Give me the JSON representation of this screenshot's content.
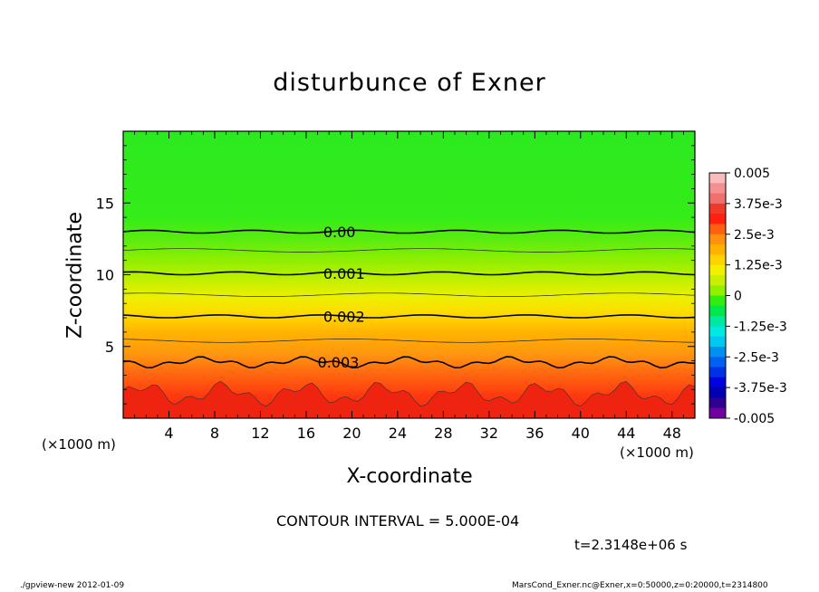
{
  "chart_data": {
    "type": "contour",
    "title": "disturbunce of Exner",
    "xlabel": "X-coordinate",
    "ylabel": "Z-coordinate",
    "x_unit": "(×1000 m)",
    "y_unit": "(×1000 m)",
    "xlim": [
      0,
      50
    ],
    "ylim": [
      0,
      20
    ],
    "x_ticks": [
      4,
      8,
      12,
      16,
      20,
      24,
      28,
      32,
      36,
      40,
      44,
      48
    ],
    "y_ticks": [
      5,
      10,
      15
    ],
    "contour_interval_text": "CONTOUR INTERVAL = 5.000E-04",
    "time_text": "t=2.3148e+06 s",
    "contour_lines": [
      {
        "label": "0.00",
        "z": 13.0
      },
      {
        "label": "0.001",
        "z": 10.1
      },
      {
        "label": "0.002",
        "z": 7.1
      },
      {
        "label": "0.003",
        "z": 3.9
      }
    ],
    "colorbar": {
      "min": -0.005,
      "max": 0.005,
      "tick_labels": [
        "0.005",
        "3.75e-3",
        "2.5e-3",
        "1.25e-3",
        "0",
        "-1.25e-3",
        "-2.5e-3",
        "-3.75e-3",
        "-0.005"
      ],
      "colors": [
        "#f8bcbc",
        "#f59090",
        "#f07070",
        "#ee3a28",
        "#ff2010",
        "#ff6010",
        "#ff9010",
        "#ffb000",
        "#ffd200",
        "#f2f000",
        "#c8f000",
        "#90f000",
        "#30ee10",
        "#00e84a",
        "#00e8a0",
        "#00e8e0",
        "#00c8f0",
        "#0090f0",
        "#0060f0",
        "#0030e8",
        "#0000e0",
        "#0000b0",
        "#300090",
        "#7000a0"
      ]
    }
  },
  "footer": {
    "left": "./gpview-new   2012-01-09",
    "right": "MarsCond_Exner.nc@Exner,x=0:50000,z=0:20000,t=2314800"
  }
}
